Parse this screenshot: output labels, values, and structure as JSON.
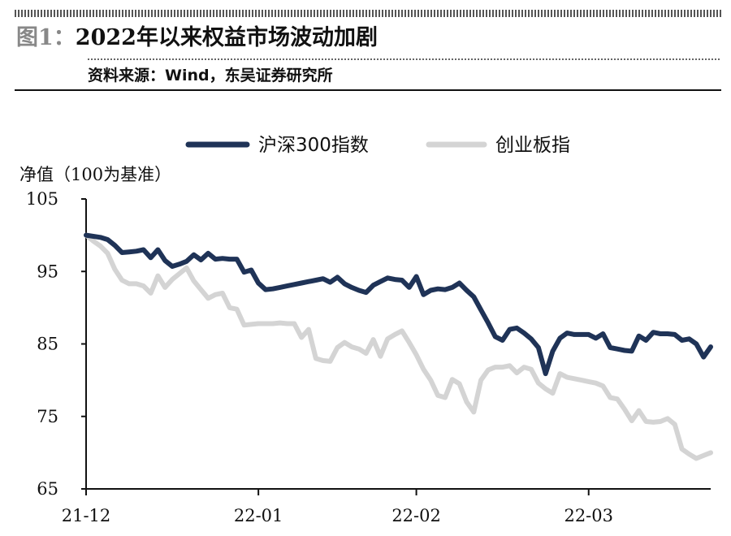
{
  "header": {
    "figure_label": "图1：",
    "title": "2022年以来权益市场波动加剧",
    "source": "资料来源：Wind，东吴证券研究所"
  },
  "chart_data": {
    "type": "line",
    "ylabel": "净值（100为基准）",
    "ylim": [
      65,
      105
    ],
    "yticks": [
      65,
      75,
      85,
      95,
      105
    ],
    "xlim": [
      0,
      87
    ],
    "xticks": [
      {
        "label": "21-12",
        "x": 0
      },
      {
        "label": "22-01",
        "x": 24
      },
      {
        "label": "22-02",
        "x": 46
      },
      {
        "label": "22-03",
        "x": 70
      }
    ],
    "legend_position": "top-center",
    "series": [
      {
        "name": "沪深300指数",
        "color": "#1f3357",
        "points": [
          [
            0,
            100.0
          ],
          [
            2,
            99.7
          ],
          [
            3,
            99.4
          ],
          [
            4,
            98.6
          ],
          [
            5,
            97.6
          ],
          [
            6,
            97.7
          ],
          [
            7,
            97.8
          ],
          [
            8,
            98.0
          ],
          [
            9,
            96.9
          ],
          [
            10,
            98.0
          ],
          [
            11,
            96.5
          ],
          [
            12,
            95.7
          ],
          [
            13,
            96.0
          ],
          [
            14,
            96.4
          ],
          [
            15,
            97.3
          ],
          [
            16,
            96.6
          ],
          [
            17,
            97.5
          ],
          [
            18,
            96.7
          ],
          [
            19,
            96.8
          ],
          [
            20,
            96.7
          ],
          [
            21,
            96.7
          ],
          [
            22,
            94.9
          ],
          [
            23,
            95.2
          ],
          [
            24,
            93.4
          ],
          [
            25,
            92.5
          ],
          [
            26,
            92.6
          ],
          [
            27,
            92.8
          ],
          [
            28,
            93.0
          ],
          [
            29,
            93.2
          ],
          [
            30,
            93.4
          ],
          [
            31,
            93.6
          ],
          [
            32,
            93.8
          ],
          [
            33,
            94.0
          ],
          [
            34,
            93.5
          ],
          [
            35,
            94.2
          ],
          [
            36,
            93.3
          ],
          [
            37,
            92.8
          ],
          [
            38,
            92.4
          ],
          [
            39,
            92.1
          ],
          [
            40,
            93.1
          ],
          [
            41,
            93.6
          ],
          [
            42,
            94.1
          ],
          [
            43,
            93.9
          ],
          [
            44,
            93.8
          ],
          [
            45,
            92.8
          ],
          [
            46,
            94.3
          ],
          [
            47,
            91.8
          ],
          [
            48,
            92.4
          ],
          [
            49,
            92.6
          ],
          [
            50,
            92.5
          ],
          [
            51,
            92.8
          ],
          [
            52,
            93.4
          ],
          [
            53,
            92.4
          ],
          [
            54,
            91.5
          ],
          [
            55,
            89.7
          ],
          [
            56,
            87.9
          ],
          [
            57,
            86.0
          ],
          [
            58,
            85.5
          ],
          [
            59,
            87.0
          ],
          [
            60,
            87.2
          ],
          [
            61,
            86.5
          ],
          [
            62,
            85.7
          ],
          [
            63,
            84.5
          ],
          [
            64,
            80.9
          ],
          [
            65,
            84.0
          ],
          [
            66,
            85.8
          ],
          [
            67,
            86.5
          ],
          [
            68,
            86.3
          ],
          [
            69,
            86.3
          ],
          [
            70,
            86.3
          ],
          [
            71,
            85.8
          ],
          [
            72,
            86.4
          ],
          [
            73,
            84.5
          ],
          [
            74,
            84.3
          ],
          [
            75,
            84.1
          ],
          [
            76,
            84.0
          ],
          [
            77,
            86.1
          ],
          [
            78,
            85.5
          ],
          [
            79,
            86.6
          ],
          [
            80,
            86.4
          ],
          [
            81,
            86.4
          ],
          [
            82,
            86.3
          ],
          [
            83,
            85.5
          ],
          [
            84,
            85.7
          ],
          [
            85,
            85.0
          ],
          [
            86,
            83.2
          ],
          [
            87,
            84.6
          ]
        ]
      },
      {
        "name": "创业板指",
        "color": "#d4d4d4",
        "points": [
          [
            0,
            100.0
          ],
          [
            1,
            99.2
          ],
          [
            2,
            98.5
          ],
          [
            3,
            97.5
          ],
          [
            4,
            95.3
          ],
          [
            5,
            93.8
          ],
          [
            6,
            93.3
          ],
          [
            7,
            93.3
          ],
          [
            8,
            93.0
          ],
          [
            9,
            92.0
          ],
          [
            10,
            94.4
          ],
          [
            11,
            92.8
          ],
          [
            12,
            93.9
          ],
          [
            13,
            94.7
          ],
          [
            14,
            95.5
          ],
          [
            15,
            93.7
          ],
          [
            16,
            92.5
          ],
          [
            17,
            91.3
          ],
          [
            18,
            91.8
          ],
          [
            19,
            92.0
          ],
          [
            20,
            90.0
          ],
          [
            21,
            89.8
          ],
          [
            22,
            87.6
          ],
          [
            23,
            87.7
          ],
          [
            24,
            87.8
          ],
          [
            25,
            87.8
          ],
          [
            26,
            87.8
          ],
          [
            27,
            87.9
          ],
          [
            28,
            87.8
          ],
          [
            29,
            87.8
          ],
          [
            30,
            85.9
          ],
          [
            31,
            87.0
          ],
          [
            32,
            83.0
          ],
          [
            33,
            82.7
          ],
          [
            34,
            82.6
          ],
          [
            35,
            84.5
          ],
          [
            36,
            85.2
          ],
          [
            37,
            84.6
          ],
          [
            38,
            84.3
          ],
          [
            39,
            83.7
          ],
          [
            40,
            85.6
          ],
          [
            41,
            83.3
          ],
          [
            42,
            85.7
          ],
          [
            43,
            86.3
          ],
          [
            44,
            86.8
          ],
          [
            45,
            85.2
          ],
          [
            46,
            83.5
          ],
          [
            47,
            81.5
          ],
          [
            48,
            80.0
          ],
          [
            49,
            77.9
          ],
          [
            50,
            77.6
          ],
          [
            51,
            80.1
          ],
          [
            52,
            79.5
          ],
          [
            53,
            77.0
          ],
          [
            54,
            75.6
          ],
          [
            55,
            80.0
          ],
          [
            56,
            81.4
          ],
          [
            57,
            81.8
          ],
          [
            58,
            81.8
          ],
          [
            59,
            82.0
          ],
          [
            60,
            81.0
          ],
          [
            61,
            81.8
          ],
          [
            62,
            81.5
          ],
          [
            63,
            79.6
          ],
          [
            64,
            78.8
          ],
          [
            65,
            78.2
          ],
          [
            66,
            80.9
          ],
          [
            67,
            80.4
          ],
          [
            68,
            80.2
          ],
          [
            69,
            80.0
          ],
          [
            70,
            79.8
          ],
          [
            71,
            79.6
          ],
          [
            72,
            79.2
          ],
          [
            73,
            77.6
          ],
          [
            74,
            77.4
          ],
          [
            75,
            76.0
          ],
          [
            76,
            74.4
          ],
          [
            77,
            75.8
          ],
          [
            78,
            74.3
          ],
          [
            79,
            74.2
          ],
          [
            80,
            74.3
          ],
          [
            81,
            74.7
          ],
          [
            82,
            73.9
          ],
          [
            83,
            70.5
          ],
          [
            84,
            69.8
          ],
          [
            85,
            69.2
          ],
          [
            86,
            69.6
          ],
          [
            87,
            70.0
          ]
        ]
      }
    ]
  }
}
